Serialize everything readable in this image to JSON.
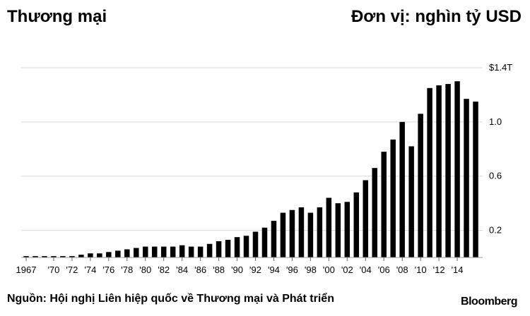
{
  "header": {
    "title": "Thương mại",
    "unit": "Đơn vị: nghìn tỷ USD"
  },
  "footer": {
    "source": "Nguồn: Hội nghị Liên hiệp quốc về Thương mại và Phát triển",
    "brand": "Bloomberg"
  },
  "chart_data": {
    "type": "bar",
    "x": [
      1967,
      1968,
      1969,
      1970,
      1971,
      1972,
      1973,
      1974,
      1975,
      1976,
      1977,
      1978,
      1979,
      1980,
      1981,
      1982,
      1983,
      1984,
      1985,
      1986,
      1987,
      1988,
      1989,
      1990,
      1991,
      1992,
      1993,
      1994,
      1995,
      1996,
      1997,
      1998,
      1999,
      2000,
      2001,
      2002,
      2003,
      2004,
      2005,
      2006,
      2007,
      2008,
      2009,
      2010,
      2011,
      2012,
      2013,
      2014,
      2015,
      2016
    ],
    "values": [
      0.01,
      0.01,
      0.01,
      0.01,
      0.01,
      0.01,
      0.02,
      0.03,
      0.03,
      0.04,
      0.05,
      0.06,
      0.07,
      0.08,
      0.08,
      0.08,
      0.08,
      0.09,
      0.08,
      0.08,
      0.1,
      0.12,
      0.13,
      0.15,
      0.16,
      0.19,
      0.22,
      0.27,
      0.33,
      0.35,
      0.37,
      0.33,
      0.37,
      0.44,
      0.4,
      0.41,
      0.48,
      0.57,
      0.66,
      0.78,
      0.87,
      1.0,
      0.82,
      1.06,
      1.25,
      1.27,
      1.28,
      1.3,
      1.17,
      1.15
    ],
    "tick_labels": [
      "1967",
      "'70",
      "'72",
      "'74",
      "'76",
      "'78",
      "'80",
      "'82",
      "'84",
      "'86",
      "'88",
      "'90",
      "'92",
      "'94",
      "'96",
      "'98",
      "'00",
      "'02",
      "'04",
      "'06",
      "'08",
      "'10",
      "'12",
      "'14"
    ],
    "tick_years": [
      1967,
      1970,
      1972,
      1974,
      1976,
      1978,
      1980,
      1982,
      1984,
      1986,
      1988,
      1990,
      1992,
      1994,
      1996,
      1998,
      2000,
      2002,
      2004,
      2006,
      2008,
      2010,
      2012,
      2014
    ],
    "yticks": [
      0.2,
      0.6,
      1.0,
      1.4
    ],
    "ytick_labels": [
      "0.2",
      "0.6",
      "1.0",
      "$1.4T"
    ],
    "ylim": [
      0,
      1.4
    ],
    "grid": true,
    "bar_color": "#000000",
    "grid_color": "#d9d9d9"
  }
}
